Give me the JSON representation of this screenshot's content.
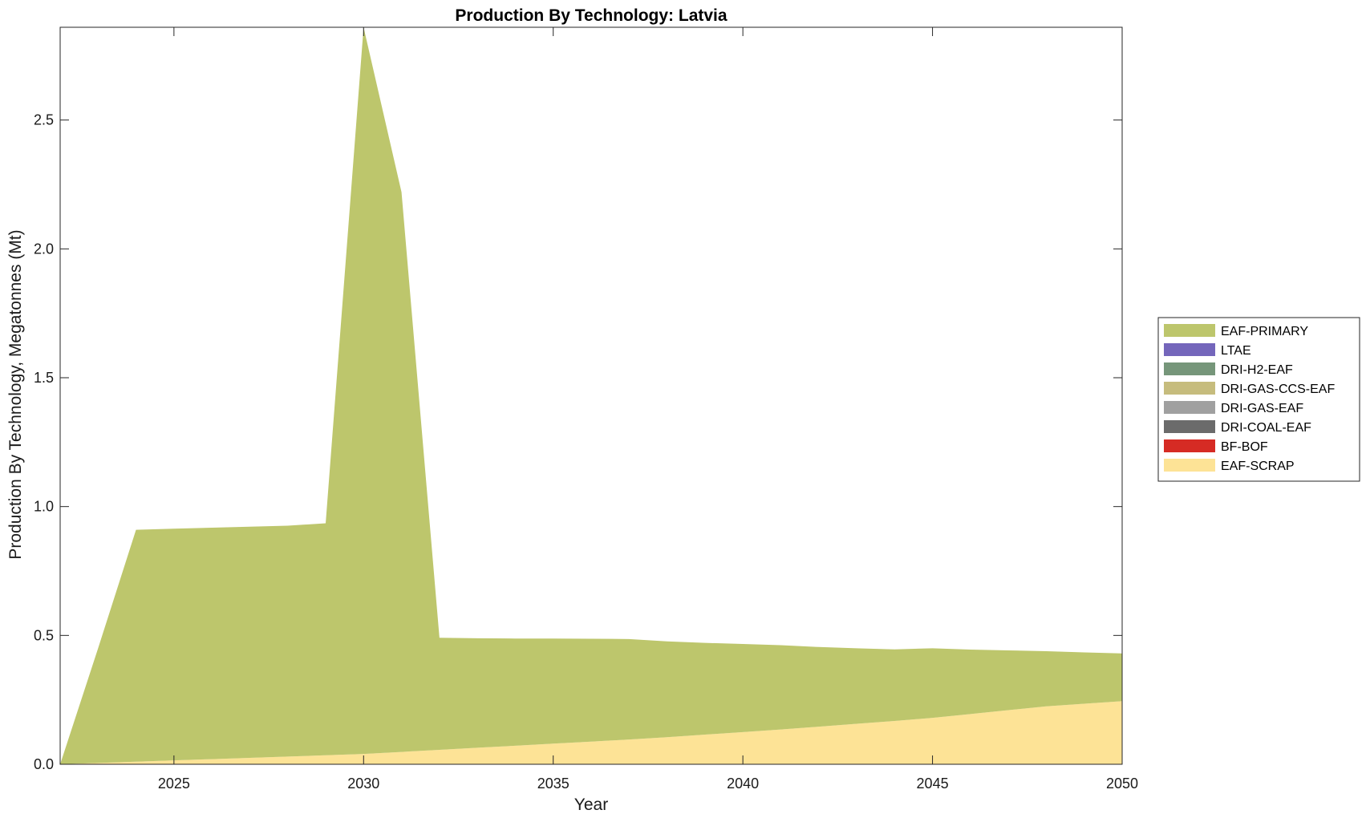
{
  "chart_data": {
    "type": "area",
    "stacked": true,
    "title": "Production By Technology: Latvia",
    "xlabel": "Year",
    "ylabel": "Production By Technology, Megatonnes (Mt)",
    "xlim": [
      2022,
      2050
    ],
    "ylim": [
      0,
      2.86
    ],
    "xticks": [
      2025,
      2030,
      2035,
      2040,
      2045,
      2050
    ],
    "yticks": [
      0.0,
      0.5,
      1.0,
      1.5,
      2.0,
      2.5
    ],
    "ytick_labels": [
      "0.0",
      "0.5",
      "1.0",
      "1.5",
      "2.0",
      "2.5"
    ],
    "grid": false,
    "legend_position": "right",
    "x": [
      2022,
      2023,
      2024,
      2025,
      2026,
      2027,
      2028,
      2029,
      2030,
      2031,
      2032,
      2033,
      2034,
      2035,
      2036,
      2037,
      2038,
      2039,
      2040,
      2041,
      2042,
      2043,
      2044,
      2045,
      2046,
      2047,
      2048,
      2049,
      2050
    ],
    "series": [
      {
        "name": "EAF-SCRAP",
        "color": "#fde396",
        "values": [
          0.0,
          0.005,
          0.01,
          0.015,
          0.02,
          0.025,
          0.03,
          0.035,
          0.04,
          0.048,
          0.056,
          0.064,
          0.072,
          0.08,
          0.088,
          0.096,
          0.105,
          0.115,
          0.125,
          0.135,
          0.146,
          0.157,
          0.168,
          0.18,
          0.195,
          0.21,
          0.225,
          0.235,
          0.245
        ]
      },
      {
        "name": "BF-BOF",
        "color": "#d62b24",
        "values": [
          0,
          0,
          0,
          0,
          0,
          0,
          0,
          0,
          0,
          0,
          0,
          0,
          0,
          0,
          0,
          0,
          0,
          0,
          0,
          0,
          0,
          0,
          0,
          0,
          0,
          0,
          0,
          0,
          0
        ]
      },
      {
        "name": "DRI-COAL-EAF",
        "color": "#6b6b6b",
        "values": [
          0,
          0,
          0,
          0,
          0,
          0,
          0,
          0,
          0,
          0,
          0,
          0,
          0,
          0,
          0,
          0,
          0,
          0,
          0,
          0,
          0,
          0,
          0,
          0,
          0,
          0,
          0,
          0,
          0
        ]
      },
      {
        "name": "DRI-GAS-EAF",
        "color": "#a0a0a0",
        "values": [
          0,
          0,
          0,
          0,
          0,
          0,
          0,
          0,
          0,
          0,
          0,
          0,
          0,
          0,
          0,
          0,
          0,
          0,
          0,
          0,
          0,
          0,
          0,
          0,
          0,
          0,
          0,
          0,
          0
        ]
      },
      {
        "name": "DRI-GAS-CCS-EAF",
        "color": "#c6bc7d",
        "values": [
          0,
          0,
          0,
          0,
          0,
          0,
          0,
          0,
          0,
          0,
          0,
          0,
          0,
          0,
          0,
          0,
          0,
          0,
          0,
          0,
          0,
          0,
          0,
          0,
          0,
          0,
          0,
          0,
          0
        ]
      },
      {
        "name": "DRI-H2-EAF",
        "color": "#76967a",
        "values": [
          0,
          0,
          0,
          0,
          0,
          0,
          0,
          0,
          0,
          0,
          0,
          0,
          0,
          0,
          0,
          0,
          0,
          0,
          0,
          0,
          0,
          0,
          0,
          0,
          0,
          0,
          0,
          0,
          0
        ]
      },
      {
        "name": "LTAE",
        "color": "#7466bb",
        "values": [
          0,
          0,
          0,
          0,
          0,
          0,
          0,
          0,
          0,
          0,
          0,
          0,
          0,
          0,
          0,
          0,
          0,
          0,
          0,
          0,
          0,
          0,
          0,
          0,
          0,
          0,
          0,
          0,
          0
        ]
      },
      {
        "name": "EAF-PRIMARY",
        "color": "#bdc66c",
        "values": [
          0.0,
          0.445,
          0.9,
          0.899,
          0.898,
          0.897,
          0.896,
          0.9,
          2.82,
          2.172,
          0.435,
          0.425,
          0.416,
          0.408,
          0.399,
          0.39,
          0.372,
          0.356,
          0.342,
          0.327,
          0.309,
          0.293,
          0.278,
          0.27,
          0.25,
          0.232,
          0.214,
          0.199,
          0.185
        ]
      }
    ],
    "legend_order": [
      "EAF-PRIMARY",
      "LTAE",
      "DRI-H2-EAF",
      "DRI-GAS-CCS-EAF",
      "DRI-GAS-EAF",
      "DRI-COAL-EAF",
      "BF-BOF",
      "EAF-SCRAP"
    ]
  }
}
